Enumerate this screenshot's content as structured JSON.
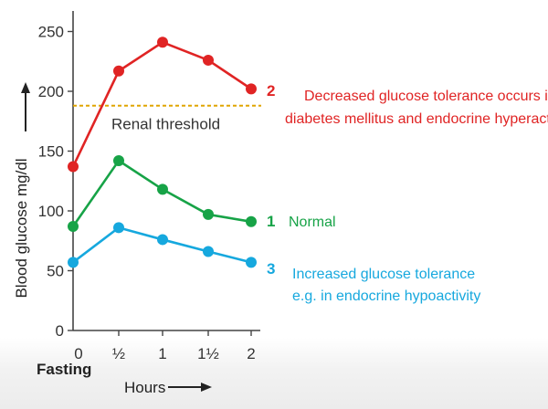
{
  "chart_data": {
    "type": "line",
    "title": "",
    "xlabel": "Hours",
    "x_extra_label": "Fasting",
    "ylabel": "Blood glucose mg/dl",
    "ylim": [
      0,
      260
    ],
    "ytick_values": [
      0,
      50,
      100,
      150,
      200,
      250
    ],
    "yticks": [
      "0",
      "50",
      "100",
      "150",
      "200",
      "250"
    ],
    "x": [
      0,
      0.5,
      1,
      1.5,
      2
    ],
    "xticks": [
      "0",
      "½",
      "1",
      "1½",
      "2"
    ],
    "grid": false,
    "legend": "none",
    "reference_lines": [
      {
        "label": "Renal threshold",
        "y": 188,
        "color": "#e0a500"
      }
    ],
    "series": [
      {
        "id": "2",
        "values": [
          137,
          217,
          241,
          226,
          202
        ],
        "color": "#e02424",
        "annotation": "Decreased glucose tolerance occurs in\ndiabetes mellitus and endocrine hyperactivity"
      },
      {
        "id": "1",
        "values": [
          87,
          142,
          118,
          97,
          91
        ],
        "color": "#17a347",
        "annotation": "Normal"
      },
      {
        "id": "3",
        "values": [
          57,
          86,
          76,
          66,
          57
        ],
        "color": "#16a8de",
        "annotation": "Increased glucose tolerance\ne.g. in endocrine hypoactivity"
      }
    ]
  }
}
